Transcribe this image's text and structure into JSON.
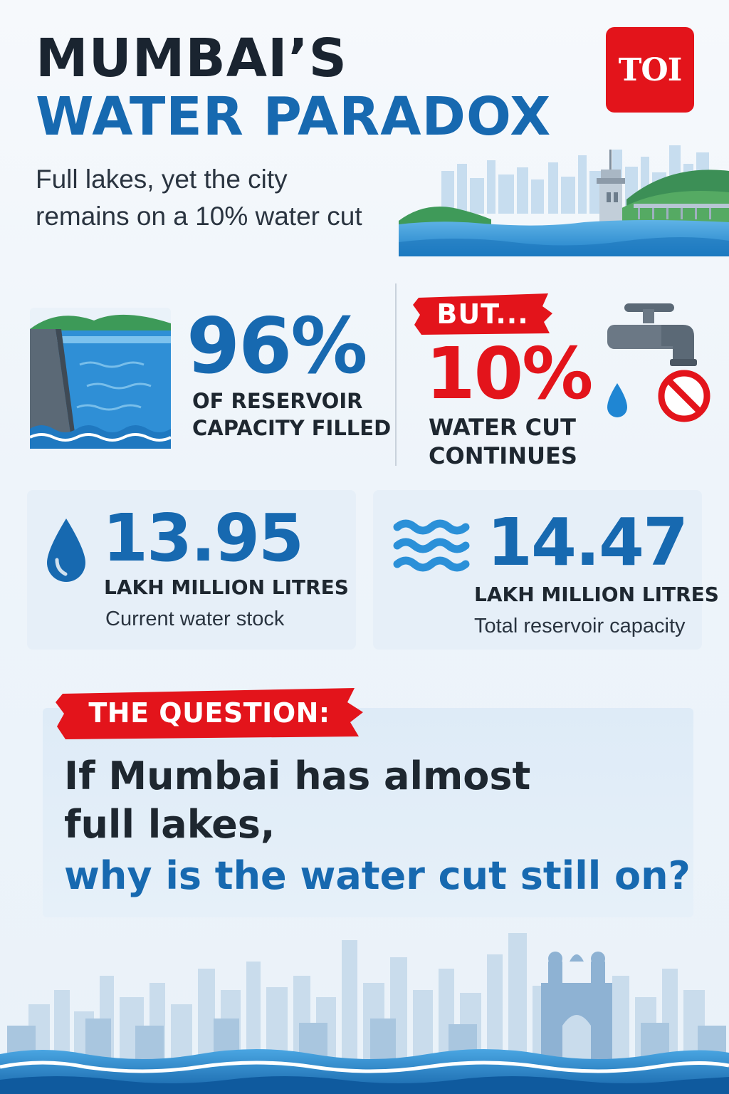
{
  "header": {
    "title_line1": "MUMBAI’S",
    "title_line2": "WATER PARADOX",
    "subtitle_line1": "Full lakes, yet the city",
    "subtitle_line2": "remains on a 10% water cut",
    "logo_text": "TOI"
  },
  "stats": {
    "reservoir": {
      "value": "96%",
      "label_line1": "OF RESERVOIR",
      "label_line2": "CAPACITY FILLED",
      "icon": "dam-icon"
    },
    "water_cut": {
      "banner": "BUT...",
      "value": "10%",
      "label_line1": "WATER CUT",
      "label_line2": "CONTINUES",
      "icon": "tap-no-water-icon"
    }
  },
  "cards": {
    "stock": {
      "value": "13.95",
      "unit": "LAKH MILLION LITRES",
      "description": "Current water stock",
      "icon": "water-drop-icon"
    },
    "capacity": {
      "value": "14.47",
      "unit": "LAKH MILLION LITRES",
      "description": "Total reservoir capacity",
      "icon": "waves-icon"
    }
  },
  "question": {
    "label": "THE QUESTION:",
    "line1": "If Mumbai has almost",
    "line2": "full lakes,",
    "line3": "why is the water cut still on?"
  },
  "colors": {
    "brand_blue": "#1769b0",
    "alert_red": "#e3141b",
    "dark_text": "#1e2730"
  }
}
